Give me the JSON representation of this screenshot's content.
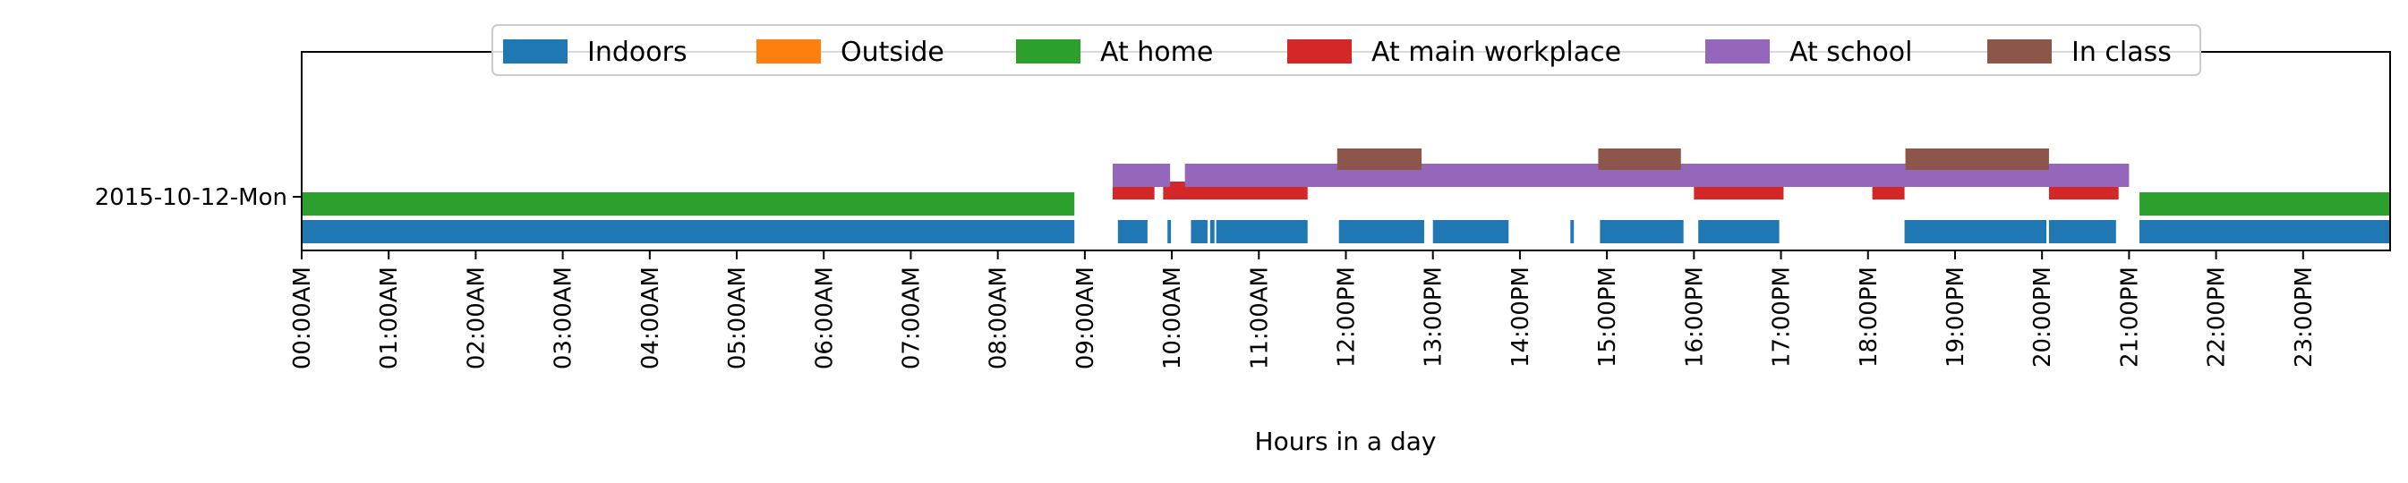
{
  "chart_data": {
    "type": "timeline",
    "xlabel": "Hours in a day",
    "ylabel": "",
    "title": "",
    "xlim": [
      0,
      24
    ],
    "x_ticks": [
      {
        "value": 0,
        "label": "00:00AM"
      },
      {
        "value": 1,
        "label": "01:00AM"
      },
      {
        "value": 2,
        "label": "02:00AM"
      },
      {
        "value": 3,
        "label": "03:00AM"
      },
      {
        "value": 4,
        "label": "04:00AM"
      },
      {
        "value": 5,
        "label": "05:00AM"
      },
      {
        "value": 6,
        "label": "06:00AM"
      },
      {
        "value": 7,
        "label": "07:00AM"
      },
      {
        "value": 8,
        "label": "08:00AM"
      },
      {
        "value": 9,
        "label": "09:00AM"
      },
      {
        "value": 10,
        "label": "10:00AM"
      },
      {
        "value": 11,
        "label": "11:00AM"
      },
      {
        "value": 12,
        "label": "12:00PM"
      },
      {
        "value": 13,
        "label": "13:00PM"
      },
      {
        "value": 14,
        "label": "14:00PM"
      },
      {
        "value": 15,
        "label": "15:00PM"
      },
      {
        "value": 16,
        "label": "16:00PM"
      },
      {
        "value": 17,
        "label": "17:00PM"
      },
      {
        "value": 18,
        "label": "18:00PM"
      },
      {
        "value": 19,
        "label": "19:00PM"
      },
      {
        "value": 20,
        "label": "20:00PM"
      },
      {
        "value": 21,
        "label": "21:00PM"
      },
      {
        "value": 22,
        "label": "22:00PM"
      },
      {
        "value": 23,
        "label": "23:00PM"
      }
    ],
    "y_categories": [
      "2015-10-12-Mon"
    ],
    "legend_position": "top-center",
    "grid": false,
    "series": [
      {
        "name": "Indoors",
        "color": "#1f77b4",
        "intervals": [
          [
            0.0,
            8.88
          ],
          [
            9.38,
            9.72
          ],
          [
            9.95,
            9.99
          ],
          [
            10.22,
            10.41
          ],
          [
            10.44,
            10.49
          ],
          [
            10.51,
            11.56
          ],
          [
            11.92,
            12.9
          ],
          [
            13.0,
            13.87
          ],
          [
            14.58,
            14.62
          ],
          [
            14.92,
            15.88
          ],
          [
            16.05,
            16.98
          ],
          [
            18.42,
            20.05
          ],
          [
            20.08,
            20.85
          ],
          [
            21.12,
            24.0
          ]
        ]
      },
      {
        "name": "Outside",
        "color": "#ff7f0e",
        "intervals": []
      },
      {
        "name": "At home",
        "color": "#2ca02c",
        "intervals": [
          [
            0.0,
            8.88
          ],
          [
            21.12,
            24.0
          ]
        ]
      },
      {
        "name": "At main workplace",
        "color": "#d62728",
        "intervals": [
          [
            9.32,
            9.8
          ],
          [
            9.9,
            11.56
          ],
          [
            16.0,
            17.03
          ],
          [
            18.05,
            18.42
          ],
          [
            20.08,
            20.88
          ]
        ]
      },
      {
        "name": "At school",
        "color": "#9467bd",
        "intervals": [
          [
            9.32,
            9.98
          ],
          [
            10.15,
            21.0
          ]
        ]
      },
      {
        "name": "In class",
        "color": "#8c564b",
        "intervals": [
          [
            11.9,
            12.87
          ],
          [
            14.9,
            15.85
          ],
          [
            18.43,
            20.08
          ]
        ]
      }
    ]
  }
}
